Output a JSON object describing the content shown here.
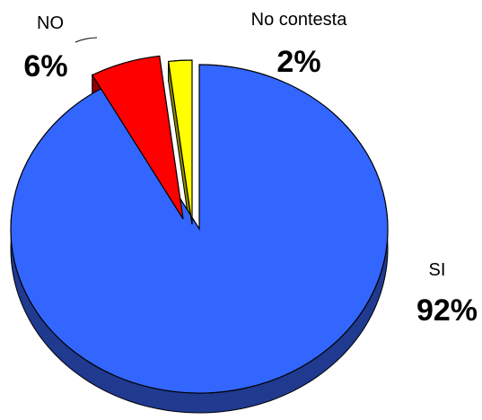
{
  "chart_data": {
    "type": "pie",
    "style": "3d-exploded",
    "title": "",
    "legend": "none",
    "slices": [
      {
        "name": "SI",
        "value": 92,
        "label": "92%",
        "color": "#3366ff",
        "side_color": "#1f3a8f"
      },
      {
        "name": "NO",
        "value": 6,
        "label": "6%",
        "color": "#ff0000",
        "side_color": "#8b0000"
      },
      {
        "name": "No contesta",
        "value": 2,
        "label": "2%",
        "color": "#ffff00",
        "side_color": "#8c8c00"
      }
    ]
  }
}
